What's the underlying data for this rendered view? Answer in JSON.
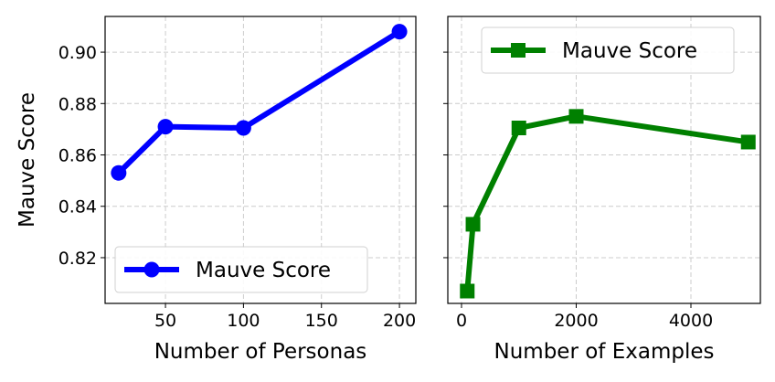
{
  "chart_data": [
    {
      "type": "line",
      "xlabel": "Number of Personas",
      "ylabel": "Mauve Score",
      "x": [
        20,
        50,
        100,
        200
      ],
      "series": [
        {
          "name": "Mauve Score",
          "color": "#0000ff",
          "marker": "circle",
          "values": [
            0.853,
            0.871,
            0.8705,
            0.908
          ]
        }
      ],
      "xlim": [
        11.3,
        210.5
      ],
      "xticks": [
        50,
        100,
        150,
        200
      ],
      "ylim": [
        0.8022,
        0.9139
      ],
      "yticks": [
        0.82,
        0.84,
        0.86,
        0.88,
        {
          "value": 0.9,
          "label": "0.90"
        }
      ],
      "grid": true,
      "legend": "lower left"
    },
    {
      "type": "line",
      "xlabel": "Number of Examples",
      "x": [
        100,
        200,
        1000,
        2000,
        5000
      ],
      "series": [
        {
          "name": "Mauve Score",
          "color": "#008000",
          "marker": "square",
          "values": [
            0.807,
            0.833,
            0.8705,
            0.875,
            0.865
          ]
        }
      ],
      "xlim": [
        -239,
        5211
      ],
      "xticks": [
        0,
        2000,
        4000
      ],
      "ylim": [
        0.8022,
        0.9139
      ],
      "yticks": [
        0.82,
        0.84,
        0.86,
        0.88,
        0.9
      ],
      "sharey": true,
      "grid": true,
      "legend": "upper center"
    }
  ]
}
